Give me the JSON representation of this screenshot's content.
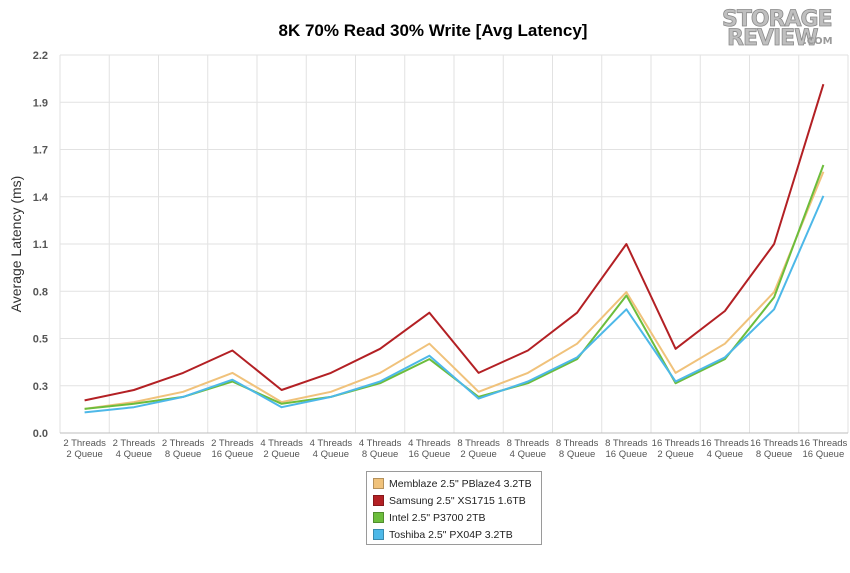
{
  "chart_data": {
    "type": "line",
    "title": "8K 70% Read 30% Write [Avg Latency]",
    "ylabel": "Average Latency (ms)",
    "xlabel": "",
    "ylim": [
      0,
      2.2
    ],
    "yticks": [
      "0.0",
      "0.3",
      "0.5",
      "0.8",
      "1.1",
      "1.4",
      "1.7",
      "1.9",
      "2.2"
    ],
    "grid": true,
    "legend_position": "bottom-center",
    "categories": [
      [
        "2 Threads",
        "2 Queue"
      ],
      [
        "2 Threads",
        "4 Queue"
      ],
      [
        "2 Threads",
        "8 Queue"
      ],
      [
        "2 Threads",
        "16 Queue"
      ],
      [
        "4 Threads",
        "2 Queue"
      ],
      [
        "4 Threads",
        "4 Queue"
      ],
      [
        "4 Threads",
        "8 Queue"
      ],
      [
        "4 Threads",
        "16 Queue"
      ],
      [
        "8 Threads",
        "2 Queue"
      ],
      [
        "8 Threads",
        "4 Queue"
      ],
      [
        "8 Threads",
        "8 Queue"
      ],
      [
        "8 Threads",
        "16 Queue"
      ],
      [
        "16 Threads",
        "2 Queue"
      ],
      [
        "16 Threads",
        "4 Queue"
      ],
      [
        "16 Threads",
        "8 Queue"
      ],
      [
        "16 Threads",
        "16 Queue"
      ]
    ],
    "series": [
      {
        "name": "Memblaze 2.5\" PBlaze4 3.2TB",
        "color": "#f0c27b",
        "values": [
          0.14,
          0.18,
          0.24,
          0.35,
          0.18,
          0.24,
          0.35,
          0.52,
          0.24,
          0.35,
          0.52,
          0.82,
          0.35,
          0.52,
          0.82,
          1.52
        ]
      },
      {
        "name": "Samsung 2.5\" XS1715 1.6TB",
        "color": "#b32024",
        "values": [
          0.19,
          0.25,
          0.35,
          0.48,
          0.25,
          0.35,
          0.49,
          0.7,
          0.35,
          0.48,
          0.7,
          1.1,
          0.49,
          0.71,
          1.1,
          2.03
        ]
      },
      {
        "name": "Intel 2.5\" P3700 2TB",
        "color": "#6cbd3c",
        "values": [
          0.14,
          0.17,
          0.21,
          0.3,
          0.17,
          0.21,
          0.29,
          0.43,
          0.21,
          0.29,
          0.43,
          0.8,
          0.29,
          0.43,
          0.79,
          1.56
        ]
      },
      {
        "name": "Toshiba 2.5\" PX04P 3.2TB",
        "color": "#4db8e8",
        "values": [
          0.12,
          0.15,
          0.21,
          0.31,
          0.15,
          0.21,
          0.3,
          0.45,
          0.2,
          0.3,
          0.44,
          0.72,
          0.3,
          0.44,
          0.72,
          1.38
        ]
      }
    ]
  },
  "logo": {
    "line1": "STORAGE",
    "line2": "REVIEW",
    "suffix": ".COM"
  }
}
